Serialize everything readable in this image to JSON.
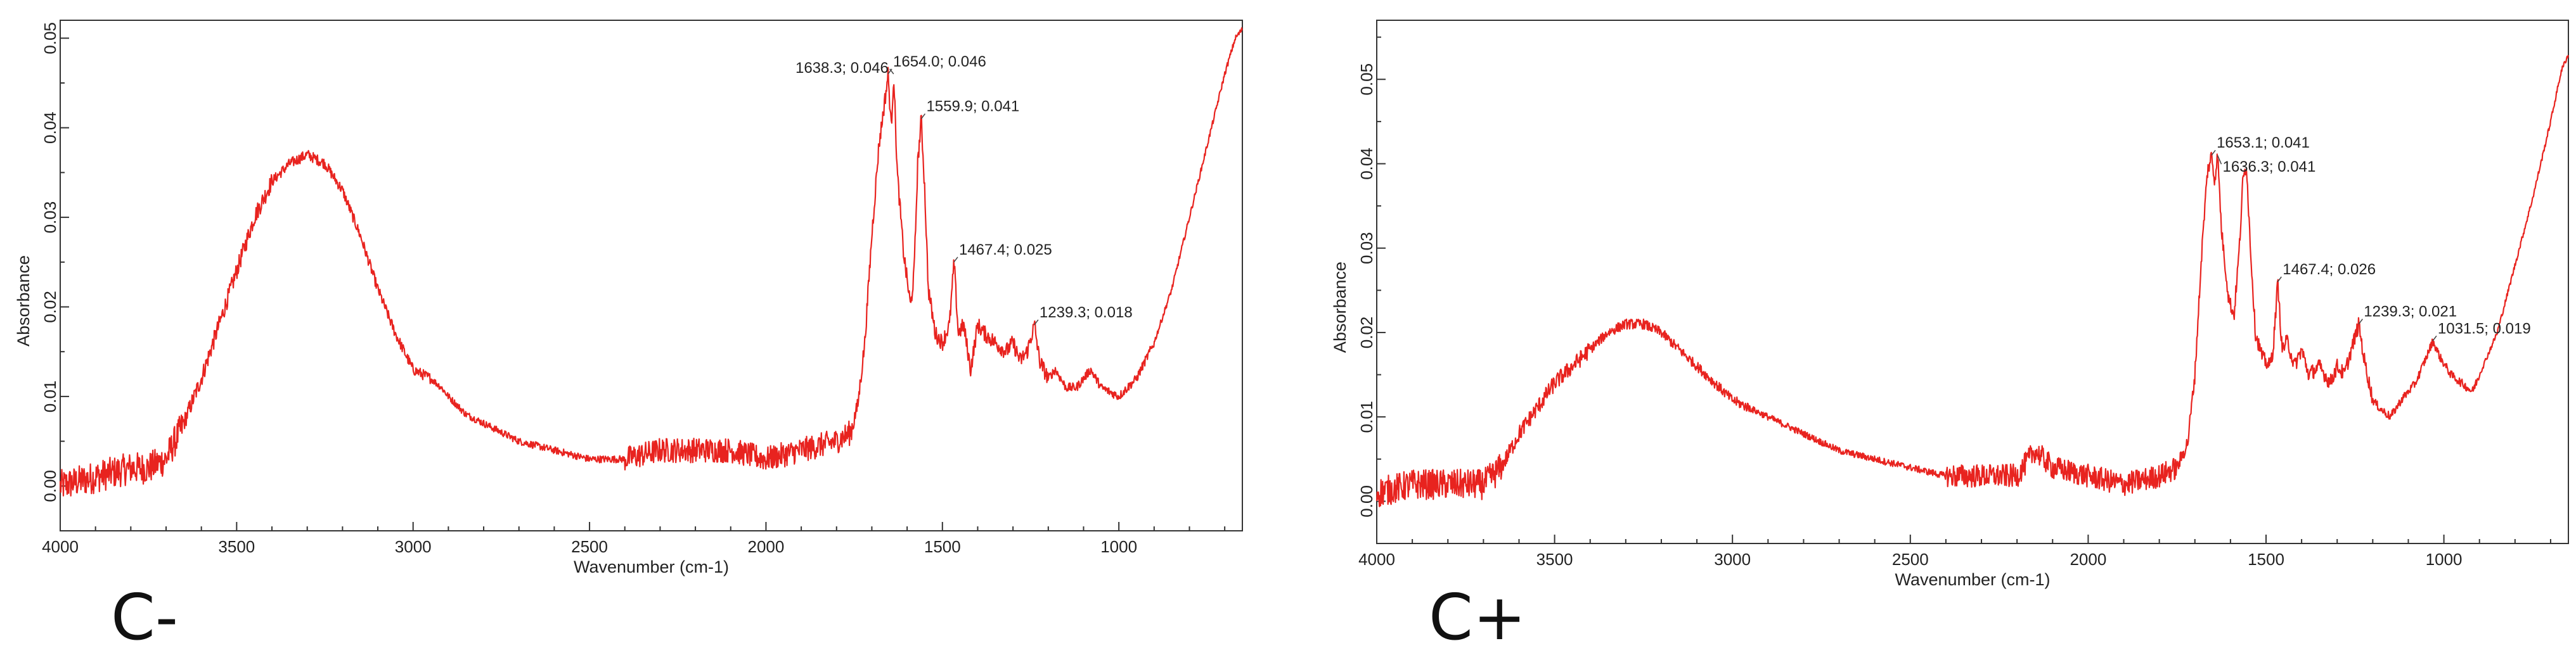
{
  "chart_data": [
    {
      "type": "line",
      "panel_label": "C-",
      "xlabel": "Wavenumber (cm-1)",
      "ylabel": "Absorbance",
      "xlim": [
        4000,
        650
      ],
      "ylim": [
        -0.005,
        0.052
      ],
      "x_ticks": [
        4000,
        3500,
        3000,
        2500,
        2000,
        1500,
        1000
      ],
      "x_tick_labels": [
        "4000",
        "3500",
        "3000",
        "2500",
        "2000",
        "1500",
        "1000"
      ],
      "y_ticks": [
        0.0,
        0.01,
        0.02,
        0.03,
        0.04,
        0.05
      ],
      "y_tick_labels": [
        "0.00",
        "0.01",
        "0.02",
        "0.03",
        "0.04",
        "0.05"
      ],
      "series": [
        {
          "name": "C-",
          "color": "#e8231f",
          "points": [
            [
              4000,
              0.0
            ],
            [
              3900,
              0.001
            ],
            [
              3800,
              0.002
            ],
            [
              3750,
              0.002
            ],
            [
              3700,
              0.003
            ],
            [
              3650,
              0.007
            ],
            [
              3600,
              0.012
            ],
            [
              3550,
              0.018
            ],
            [
              3500,
              0.024
            ],
            [
              3450,
              0.03
            ],
            [
              3400,
              0.034
            ],
            [
              3350,
              0.036
            ],
            [
              3300,
              0.037
            ],
            [
              3250,
              0.036
            ],
            [
              3200,
              0.033
            ],
            [
              3150,
              0.028
            ],
            [
              3100,
              0.022
            ],
            [
              3050,
              0.017
            ],
            [
              3000,
              0.013
            ],
            [
              2950,
              0.012
            ],
            [
              2920,
              0.011
            ],
            [
              2900,
              0.01
            ],
            [
              2850,
              0.008
            ],
            [
              2800,
              0.007
            ],
            [
              2700,
              0.005
            ],
            [
              2600,
              0.004
            ],
            [
              2500,
              0.003
            ],
            [
              2400,
              0.003
            ],
            [
              2300,
              0.004
            ],
            [
              2200,
              0.004
            ],
            [
              2100,
              0.004
            ],
            [
              2000,
              0.003
            ],
            [
              1900,
              0.004
            ],
            [
              1800,
              0.005
            ],
            [
              1760,
              0.006
            ],
            [
              1740,
              0.009
            ],
            [
              1720,
              0.016
            ],
            [
              1700,
              0.028
            ],
            [
              1680,
              0.038
            ],
            [
              1660,
              0.044
            ],
            [
              1654,
              0.046
            ],
            [
              1645,
              0.04
            ],
            [
              1638,
              0.046
            ],
            [
              1628,
              0.035
            ],
            [
              1610,
              0.026
            ],
            [
              1590,
              0.02
            ],
            [
              1580,
              0.024
            ],
            [
              1570,
              0.036
            ],
            [
              1560,
              0.041
            ],
            [
              1550,
              0.033
            ],
            [
              1540,
              0.022
            ],
            [
              1520,
              0.017
            ],
            [
              1500,
              0.016
            ],
            [
              1480,
              0.018
            ],
            [
              1467,
              0.025
            ],
            [
              1455,
              0.017
            ],
            [
              1440,
              0.018
            ],
            [
              1420,
              0.013
            ],
            [
              1400,
              0.018
            ],
            [
              1380,
              0.017
            ],
            [
              1350,
              0.016
            ],
            [
              1320,
              0.015
            ],
            [
              1300,
              0.016
            ],
            [
              1280,
              0.014
            ],
            [
              1260,
              0.015
            ],
            [
              1239,
              0.018
            ],
            [
              1225,
              0.014
            ],
            [
              1200,
              0.012
            ],
            [
              1180,
              0.013
            ],
            [
              1150,
              0.011
            ],
            [
              1120,
              0.011
            ],
            [
              1080,
              0.013
            ],
            [
              1050,
              0.011
            ],
            [
              1000,
              0.01
            ],
            [
              950,
              0.012
            ],
            [
              900,
              0.016
            ],
            [
              850,
              0.022
            ],
            [
              800,
              0.03
            ],
            [
              750,
              0.038
            ],
            [
              700,
              0.046
            ],
            [
              670,
              0.05
            ],
            [
              650,
              0.051
            ]
          ]
        }
      ],
      "annotations": [
        {
          "x": 1638.3,
          "y": 0.046,
          "text": "1638.3; 0.046",
          "side": "left"
        },
        {
          "x": 1654.0,
          "y": 0.046,
          "text": "1654.0; 0.046",
          "side": "right"
        },
        {
          "x": 1559.9,
          "y": 0.041,
          "text": "1559.9; 0.041",
          "side": "right"
        },
        {
          "x": 1467.4,
          "y": 0.025,
          "text": "1467.4; 0.025",
          "side": "right"
        },
        {
          "x": 1239.3,
          "y": 0.018,
          "text": "1239.3; 0.018",
          "side": "right"
        }
      ]
    },
    {
      "type": "line",
      "panel_label": "C+",
      "xlabel": "Wavenumber (cm-1)",
      "ylabel": "Absorbance",
      "xlim": [
        4000,
        650
      ],
      "ylim": [
        -0.005,
        0.057
      ],
      "x_ticks": [
        4000,
        3500,
        3000,
        2500,
        2000,
        1500,
        1000
      ],
      "x_tick_labels": [
        "4000",
        "3500",
        "3000",
        "2500",
        "2000",
        "1500",
        "1000"
      ],
      "y_ticks": [
        0.0,
        0.01,
        0.02,
        0.03,
        0.04,
        0.05
      ],
      "y_tick_labels": [
        "0.00",
        "0.01",
        "0.02",
        "0.03",
        "0.04",
        "0.05"
      ],
      "series": [
        {
          "name": "C+",
          "color": "#e8231f",
          "points": [
            [
              4000,
              0.001
            ],
            [
              3900,
              0.002
            ],
            [
              3800,
              0.002
            ],
            [
              3700,
              0.002
            ],
            [
              3650,
              0.004
            ],
            [
              3600,
              0.008
            ],
            [
              3550,
              0.011
            ],
            [
              3500,
              0.014
            ],
            [
              3450,
              0.016
            ],
            [
              3400,
              0.018
            ],
            [
              3350,
              0.02
            ],
            [
              3300,
              0.021
            ],
            [
              3250,
              0.021
            ],
            [
              3200,
              0.02
            ],
            [
              3150,
              0.018
            ],
            [
              3100,
              0.016
            ],
            [
              3050,
              0.014
            ],
            [
              3000,
              0.012
            ],
            [
              2950,
              0.011
            ],
            [
              2900,
              0.01
            ],
            [
              2850,
              0.009
            ],
            [
              2800,
              0.008
            ],
            [
              2700,
              0.006
            ],
            [
              2600,
              0.005
            ],
            [
              2500,
              0.004
            ],
            [
              2400,
              0.003
            ],
            [
              2300,
              0.003
            ],
            [
              2200,
              0.003
            ],
            [
              2150,
              0.006
            ],
            [
              2100,
              0.004
            ],
            [
              2000,
              0.003
            ],
            [
              1900,
              0.002
            ],
            [
              1800,
              0.003
            ],
            [
              1750,
              0.004
            ],
            [
              1720,
              0.007
            ],
            [
              1700,
              0.015
            ],
            [
              1680,
              0.03
            ],
            [
              1665,
              0.039
            ],
            [
              1653,
              0.041
            ],
            [
              1645,
              0.038
            ],
            [
              1636,
              0.041
            ],
            [
              1625,
              0.032
            ],
            [
              1605,
              0.024
            ],
            [
              1590,
              0.022
            ],
            [
              1575,
              0.03
            ],
            [
              1565,
              0.038
            ],
            [
              1555,
              0.04
            ],
            [
              1545,
              0.031
            ],
            [
              1530,
              0.02
            ],
            [
              1510,
              0.017
            ],
            [
              1490,
              0.016
            ],
            [
              1480,
              0.018
            ],
            [
              1467,
              0.026
            ],
            [
              1455,
              0.018
            ],
            [
              1440,
              0.019
            ],
            [
              1420,
              0.016
            ],
            [
              1400,
              0.018
            ],
            [
              1380,
              0.015
            ],
            [
              1350,
              0.016
            ],
            [
              1320,
              0.014
            ],
            [
              1300,
              0.016
            ],
            [
              1280,
              0.015
            ],
            [
              1260,
              0.018
            ],
            [
              1239,
              0.021
            ],
            [
              1225,
              0.017
            ],
            [
              1200,
              0.012
            ],
            [
              1180,
              0.011
            ],
            [
              1150,
              0.01
            ],
            [
              1120,
              0.012
            ],
            [
              1080,
              0.014
            ],
            [
              1050,
              0.017
            ],
            [
              1031,
              0.019
            ],
            [
              1010,
              0.017
            ],
            [
              980,
              0.015
            ],
            [
              950,
              0.014
            ],
            [
              920,
              0.013
            ],
            [
              900,
              0.015
            ],
            [
              850,
              0.02
            ],
            [
              800,
              0.028
            ],
            [
              750,
              0.036
            ],
            [
              700,
              0.045
            ],
            [
              670,
              0.051
            ],
            [
              650,
              0.053
            ]
          ]
        }
      ],
      "annotations": [
        {
          "x": 1653.1,
          "y": 0.041,
          "text": "1653.1; 0.041",
          "side": "right"
        },
        {
          "x": 1636.3,
          "y": 0.041,
          "text": "1636.3; 0.041",
          "side": "right-below"
        },
        {
          "x": 1467.4,
          "y": 0.026,
          "text": "1467.4; 0.026",
          "side": "right"
        },
        {
          "x": 1239.3,
          "y": 0.021,
          "text": "1239.3; 0.021",
          "side": "right"
        },
        {
          "x": 1031.5,
          "y": 0.019,
          "text": "1031.5; 0.019",
          "side": "right"
        }
      ]
    }
  ]
}
